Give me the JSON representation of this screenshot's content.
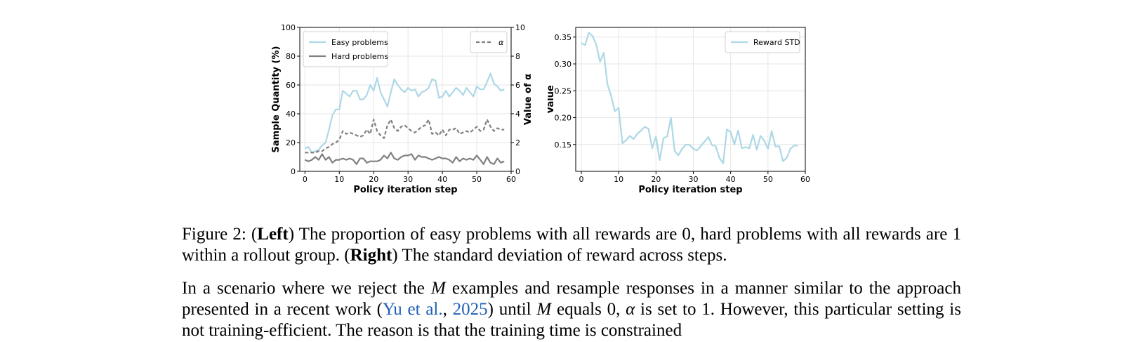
{
  "chart_data": [
    {
      "type": "line",
      "title": "",
      "xlabel": "Policy iteration step",
      "ylabel": "Sample Quantity (%)",
      "y2label": "Value of α",
      "xlim": [
        -1.5,
        60
      ],
      "ylim": [
        0,
        100
      ],
      "y2lim": [
        0,
        10
      ],
      "xticks": [
        0,
        10,
        20,
        30,
        40,
        50,
        60
      ],
      "yticks": [
        0,
        20,
        40,
        60,
        80,
        100
      ],
      "y2ticks": [
        0,
        2,
        4,
        6,
        8,
        10
      ],
      "grid": true,
      "legend_left": [
        "Easy problems",
        "Hard problems"
      ],
      "legend_right": [
        "α"
      ],
      "legend_left_placement": "top-left",
      "legend_right_placement": "top-right",
      "series": [
        {
          "name": "Easy problems",
          "color": "#add8e6",
          "axis": "left",
          "style": "solid",
          "x": [
            0,
            1,
            2,
            3,
            4,
            5,
            6,
            7,
            8,
            9,
            10,
            11,
            12,
            13,
            14,
            15,
            16,
            17,
            18,
            19,
            20,
            21,
            22,
            23,
            24,
            25,
            26,
            27,
            28,
            29,
            30,
            31,
            32,
            33,
            34,
            35,
            36,
            37,
            38,
            39,
            40,
            41,
            42,
            43,
            44,
            45,
            46,
            47,
            48,
            49,
            50,
            51,
            52,
            53,
            54,
            55,
            56,
            57,
            58
          ],
          "values": [
            16,
            17,
            13,
            14,
            15,
            18,
            20,
            29,
            39,
            43,
            43,
            56,
            54,
            52,
            56,
            56,
            50,
            50,
            53,
            60,
            56,
            65,
            55,
            50,
            45,
            55,
            64,
            60,
            57,
            55,
            58,
            56,
            57,
            52,
            55,
            56,
            58,
            64,
            63,
            51,
            52,
            56,
            52,
            55,
            58,
            56,
            53,
            58,
            55,
            52,
            59,
            57,
            57,
            62,
            68,
            61,
            59,
            56,
            57
          ]
        },
        {
          "name": "Hard problems",
          "color": "#808080",
          "axis": "left",
          "style": "solid",
          "x": [
            0,
            1,
            2,
            3,
            4,
            5,
            6,
            7,
            8,
            9,
            10,
            11,
            12,
            13,
            14,
            15,
            16,
            17,
            18,
            19,
            20,
            21,
            22,
            23,
            24,
            25,
            26,
            27,
            28,
            29,
            30,
            31,
            32,
            33,
            34,
            35,
            36,
            37,
            38,
            39,
            40,
            41,
            42,
            43,
            44,
            45,
            46,
            47,
            48,
            49,
            50,
            51,
            52,
            53,
            54,
            55,
            56,
            57,
            58
          ],
          "values": [
            8,
            7,
            8,
            10,
            8,
            12,
            8,
            10,
            6,
            8,
            8,
            9,
            8,
            9,
            8,
            5,
            9,
            9,
            6,
            7,
            7,
            7,
            8,
            11,
            9,
            13,
            9,
            8,
            10,
            11,
            11,
            12,
            8,
            11,
            10,
            10,
            9,
            8,
            9,
            10,
            9,
            9,
            8,
            6,
            10,
            7,
            9,
            8,
            9,
            8,
            11,
            8,
            5,
            10,
            6,
            5,
            9,
            6,
            7
          ]
        },
        {
          "name": "α",
          "color": "#808080",
          "axis": "right",
          "style": "dashed",
          "x": [
            0,
            1,
            2,
            3,
            4,
            5,
            6,
            7,
            8,
            9,
            10,
            11,
            12,
            13,
            14,
            15,
            16,
            17,
            18,
            19,
            20,
            21,
            22,
            23,
            24,
            25,
            26,
            27,
            28,
            29,
            30,
            31,
            32,
            33,
            34,
            35,
            36,
            37,
            38,
            39,
            40,
            41,
            42,
            43,
            44,
            45,
            46,
            47,
            48,
            49,
            50,
            51,
            52,
            53,
            54,
            55,
            56,
            57,
            58
          ],
          "values": [
            1.3,
            1.3,
            1.3,
            1.3,
            1.4,
            1.4,
            1.6,
            1.7,
            1.9,
            2.0,
            2.2,
            2.8,
            2.6,
            2.7,
            2.6,
            2.5,
            2.4,
            2.5,
            2.9,
            2.6,
            3.6,
            2.8,
            2.5,
            2.3,
            3.2,
            3.6,
            3.0,
            2.8,
            3.1,
            3.2,
            3.0,
            2.8,
            2.7,
            2.9,
            3.1,
            3.2,
            3.6,
            2.6,
            2.7,
            2.5,
            2.9,
            2.5,
            2.9,
            2.9,
            3.0,
            2.6,
            2.7,
            2.8,
            2.7,
            2.9,
            3.1,
            2.8,
            2.9,
            3.6,
            3.1,
            2.8,
            3.0,
            2.9,
            2.9
          ]
        }
      ]
    },
    {
      "type": "line",
      "title": "",
      "xlabel": "Policy iteration step",
      "ylabel": "Value",
      "xlim": [
        -1.5,
        60
      ],
      "ylim": [
        0.1,
        0.368
      ],
      "xticks": [
        0,
        10,
        20,
        30,
        40,
        50,
        60
      ],
      "yticks": [
        0.15,
        0.2,
        0.25,
        0.3,
        0.35
      ],
      "ytick_labels": [
        "0.15",
        "0.20",
        "0.25",
        "0.30",
        "0.35"
      ],
      "grid": true,
      "legend_placement": "top-right",
      "series": [
        {
          "name": "Reward STD",
          "color": "#add8e6",
          "x": [
            0,
            1,
            2,
            3,
            4,
            5,
            6,
            7,
            8,
            9,
            10,
            11,
            12,
            13,
            14,
            15,
            16,
            17,
            18,
            19,
            20,
            21,
            22,
            23,
            24,
            25,
            26,
            27,
            28,
            29,
            30,
            31,
            32,
            33,
            34,
            35,
            36,
            37,
            38,
            39,
            40,
            41,
            42,
            43,
            44,
            45,
            46,
            47,
            48,
            49,
            50,
            51,
            52,
            53,
            54,
            55,
            56,
            57,
            58
          ],
          "values": [
            0.339,
            0.335,
            0.358,
            0.352,
            0.336,
            0.304,
            0.321,
            0.262,
            0.24,
            0.212,
            0.218,
            0.152,
            0.158,
            0.166,
            0.16,
            0.17,
            0.176,
            0.183,
            0.179,
            0.143,
            0.165,
            0.121,
            0.162,
            0.165,
            0.2,
            0.138,
            0.13,
            0.142,
            0.15,
            0.149,
            0.142,
            0.139,
            0.147,
            0.155,
            0.164,
            0.149,
            0.147,
            0.125,
            0.115,
            0.178,
            0.173,
            0.15,
            0.176,
            0.143,
            0.145,
            0.143,
            0.168,
            0.14,
            0.166,
            0.157,
            0.142,
            0.175,
            0.146,
            0.147,
            0.119,
            0.125,
            0.142,
            0.148,
            0.148
          ]
        }
      ]
    }
  ],
  "caption": {
    "prefix": "Figure 2: (",
    "left_label": "Left",
    "part1": ") The proportion of easy problems with all rewards are 0, hard problems with all rewards are 1 within a rollout group. (",
    "right_label": "Right",
    "part2": ") The standard deviation of reward across steps."
  },
  "paragraph": {
    "t1": "In a scenario where we reject the ",
    "m1": "M",
    "t2": " examples and resample responses in a manner similar to the approach presented in a recent work (",
    "cite_author": "Yu et al.",
    "t3": ", ",
    "cite_year": "2025",
    "t4": ") until ",
    "m2": "M",
    "t5": " equals 0, ",
    "alpha": "α",
    "t6": " is set to 1.  However, this particular setting is not training-efficient.  The reason is that the training time is constrained"
  }
}
